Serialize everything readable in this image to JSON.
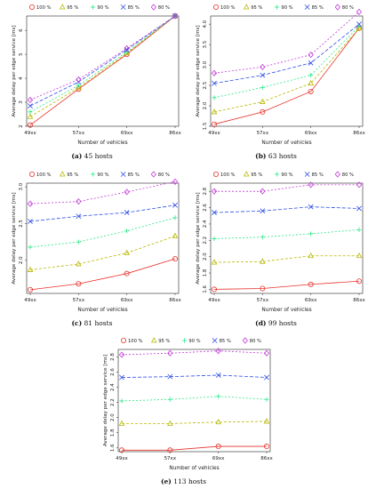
{
  "legend_labels": [
    "100 %",
    "95 %",
    "90 %",
    "85 %",
    "80 %"
  ],
  "series_colors": [
    "#e8322b",
    "#b8b800",
    "#2ee88a",
    "#2c4de8",
    "#c23ad8"
  ],
  "series_markers": [
    "circle",
    "triangle",
    "plus",
    "x",
    "diamond"
  ],
  "chart_data": [
    {
      "id": "a",
      "type": "line",
      "caption_label": "(a)",
      "caption_text": " 45 hosts",
      "xlabel": "Number of vehicles",
      "ylabel": "Average delay per edge service [ms]",
      "categories": [
        "49xx",
        "57xx",
        "69xx",
        "86xx"
      ],
      "ylim": [
        2,
        6.6
      ],
      "yticks": [
        2,
        3,
        4,
        5,
        6
      ],
      "ytick_labels": [
        "2",
        "3",
        "4",
        "5",
        "6"
      ],
      "series": [
        {
          "name": "100 %",
          "values": [
            2.05,
            3.55,
            5.0,
            6.6
          ]
        },
        {
          "name": "95 %",
          "values": [
            2.4,
            3.6,
            5.05,
            6.6
          ]
        },
        {
          "name": "90 %",
          "values": [
            2.6,
            3.7,
            5.1,
            6.6
          ]
        },
        {
          "name": "85 %",
          "values": [
            2.85,
            3.85,
            5.2,
            6.6
          ]
        },
        {
          "name": "80 %",
          "values": [
            3.1,
            3.95,
            5.25,
            6.6
          ]
        }
      ]
    },
    {
      "id": "b",
      "type": "line",
      "caption_label": "(b)",
      "caption_text": " 63 hosts",
      "xlabel": "Number of vehicles",
      "ylabel": "Average delay per edge service [ms]",
      "categories": [
        "49xx",
        "57xx",
        "69xx",
        "86xx"
      ],
      "ylim": [
        1.5,
        4.2
      ],
      "yticks": [
        1.5,
        2.0,
        2.5,
        3.0,
        3.5,
        4.0
      ],
      "ytick_labels": [
        "1.5",
        "2.0",
        "2.5",
        "3.0",
        "3.5",
        "4.0"
      ],
      "series": [
        {
          "name": "100 %",
          "values": [
            1.55,
            1.85,
            2.35,
            3.9
          ]
        },
        {
          "name": "95 %",
          "values": [
            1.85,
            2.1,
            2.55,
            3.9
          ]
        },
        {
          "name": "90 %",
          "values": [
            2.2,
            2.45,
            2.75,
            3.95
          ]
        },
        {
          "name": "85 %",
          "values": [
            2.55,
            2.75,
            3.05,
            4.0
          ]
        },
        {
          "name": "80 %",
          "values": [
            2.8,
            2.95,
            3.25,
            4.3
          ]
        }
      ]
    },
    {
      "id": "c",
      "type": "line",
      "caption_label": "(c)",
      "caption_text": " 81 hosts",
      "xlabel": "Number of vehicles",
      "ylabel": "Average delay per edge service [ms]",
      "categories": [
        "49xx",
        "57xx",
        "69xx",
        "86xx"
      ],
      "ylim": [
        1.55,
        3.05
      ],
      "yticks": [
        2.0,
        2.5,
        3.0
      ],
      "ytick_labels": [
        "2.0",
        "2.5",
        "3.0"
      ],
      "series": [
        {
          "name": "100 %",
          "values": [
            1.6,
            1.68,
            1.82,
            2.02
          ]
        },
        {
          "name": "95 %",
          "values": [
            1.87,
            1.95,
            2.1,
            2.33
          ]
        },
        {
          "name": "90 %",
          "values": [
            2.18,
            2.25,
            2.4,
            2.58
          ]
        },
        {
          "name": "85 %",
          "values": [
            2.53,
            2.6,
            2.65,
            2.75
          ]
        },
        {
          "name": "80 %",
          "values": [
            2.77,
            2.8,
            2.93,
            3.07
          ]
        }
      ]
    },
    {
      "id": "d",
      "type": "line",
      "caption_label": "(d)",
      "caption_text": " 99 hosts",
      "xlabel": "Number of vehicles",
      "ylabel": "Average delay per edge service [ms]",
      "categories": [
        "49xx",
        "57xx",
        "69xx",
        "86xx"
      ],
      "ylim": [
        1.55,
        2.9
      ],
      "yticks": [
        1.6,
        1.8,
        2.0,
        2.2,
        2.4,
        2.6,
        2.8
      ],
      "ytick_labels": [
        "1.6",
        "1.8",
        "2.0",
        "2.2",
        "2.4",
        "2.6",
        "2.8"
      ],
      "series": [
        {
          "name": "100 %",
          "values": [
            1.6,
            1.61,
            1.66,
            1.7
          ]
        },
        {
          "name": "95 %",
          "values": [
            1.93,
            1.94,
            2.01,
            2.01
          ]
        },
        {
          "name": "90 %",
          "values": [
            2.22,
            2.24,
            2.28,
            2.33
          ]
        },
        {
          "name": "85 %",
          "values": [
            2.54,
            2.56,
            2.61,
            2.59
          ]
        },
        {
          "name": "80 %",
          "values": [
            2.8,
            2.8,
            2.88,
            2.88
          ]
        }
      ]
    },
    {
      "id": "e",
      "type": "line",
      "caption_label": "(e)",
      "caption_text": " 113 hosts",
      "xlabel": "Number of vehicles",
      "ylabel": "Average delay per edge service [ms]",
      "categories": [
        "49xx",
        "57xx",
        "69xx",
        "86xx"
      ],
      "ylim": [
        1.55,
        2.9
      ],
      "yticks": [
        1.6,
        1.8,
        2.0,
        2.2,
        2.4,
        2.6,
        2.8
      ],
      "ytick_labels": [
        "1.6",
        "1.8",
        "2.0",
        "2.2",
        "2.4",
        "2.6",
        "2.8"
      ],
      "series": [
        {
          "name": "100 %",
          "values": [
            1.57,
            1.57,
            1.62,
            1.62
          ]
        },
        {
          "name": "95 %",
          "values": [
            1.92,
            1.92,
            1.94,
            1.95
          ]
        },
        {
          "name": "90 %",
          "values": [
            2.22,
            2.24,
            2.28,
            2.24
          ]
        },
        {
          "name": "85 %",
          "values": [
            2.53,
            2.54,
            2.56,
            2.53
          ]
        },
        {
          "name": "80 %",
          "values": [
            2.83,
            2.85,
            2.88,
            2.85
          ]
        }
      ]
    }
  ]
}
